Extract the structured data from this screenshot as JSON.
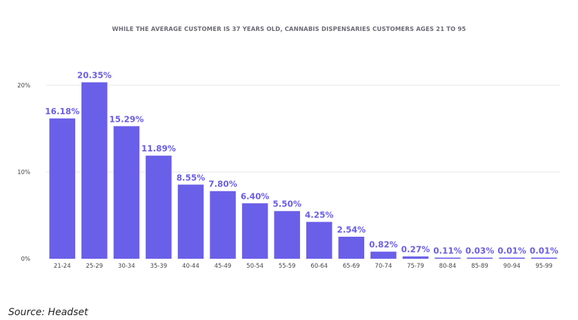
{
  "chart_data": {
    "type": "bar",
    "title": "WHILE THE AVERAGE CUSTOMER IS 37 YEARS OLD, CANNABIS DISPENSARIES CUSTOMERS AGES 21 TO 95",
    "xlabel": "",
    "ylabel": "",
    "categories": [
      "21-24",
      "25-29",
      "30-34",
      "35-39",
      "40-44",
      "45-49",
      "50-54",
      "55-59",
      "60-64",
      "65-69",
      "70-74",
      "75-79",
      "80-84",
      "85-89",
      "90-94",
      "95-99"
    ],
    "values": [
      16.18,
      20.35,
      15.29,
      11.89,
      8.55,
      7.8,
      6.4,
      5.5,
      4.25,
      2.54,
      0.82,
      0.27,
      0.11,
      0.03,
      0.01,
      0.01
    ],
    "data_labels": [
      "16.18%",
      "20.35%",
      "15.29%",
      "11.89%",
      "8.55%",
      "7.80%",
      "6.40%",
      "5.50%",
      "4.25%",
      "2.54%",
      "0.82%",
      "0.27%",
      "0.11%",
      "0.03%",
      "0.01%",
      "0.01%"
    ],
    "ylim": [
      0,
      20
    ],
    "yticks": [
      0,
      10,
      20
    ],
    "ytick_labels": [
      "0%",
      "10%",
      "20%"
    ],
    "grid": true,
    "legend": "none",
    "bar_color": "#6a5fe8",
    "label_color": "#6a5fe8",
    "grid_color": "#e6e6ea"
  },
  "source": "Source: Headset"
}
